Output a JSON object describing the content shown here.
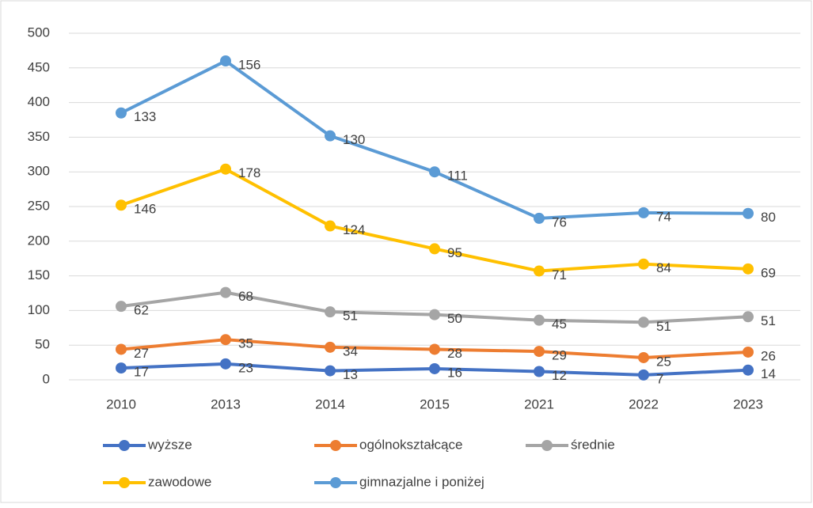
{
  "chart_data": {
    "type": "line",
    "stacked": true,
    "categories": [
      "2010",
      "2013",
      "2014",
      "2015",
      "2021",
      "2022",
      "2023"
    ],
    "series": [
      {
        "name": "wyższe",
        "color": "#4472c4",
        "values": [
          17,
          23,
          13,
          16,
          12,
          7,
          14
        ]
      },
      {
        "name": "ogólnokształcące",
        "color": "#ed7d31",
        "values": [
          27,
          35,
          34,
          28,
          29,
          25,
          26
        ]
      },
      {
        "name": "średnie",
        "color": "#a5a5a5",
        "values": [
          62,
          68,
          51,
          50,
          45,
          51,
          51
        ]
      },
      {
        "name": "zawodowe",
        "color": "#ffc000",
        "values": [
          146,
          178,
          124,
          95,
          71,
          84,
          69
        ]
      },
      {
        "name": "gimnazjalne i poniżej",
        "color": "#5b9bd5",
        "values": [
          133,
          156,
          130,
          111,
          76,
          74,
          80
        ]
      }
    ],
    "ylim": [
      0,
      500
    ],
    "yticks": [
      0,
      50,
      100,
      150,
      200,
      250,
      300,
      350,
      400,
      450,
      500
    ],
    "grid": true,
    "legend": "bottom"
  }
}
